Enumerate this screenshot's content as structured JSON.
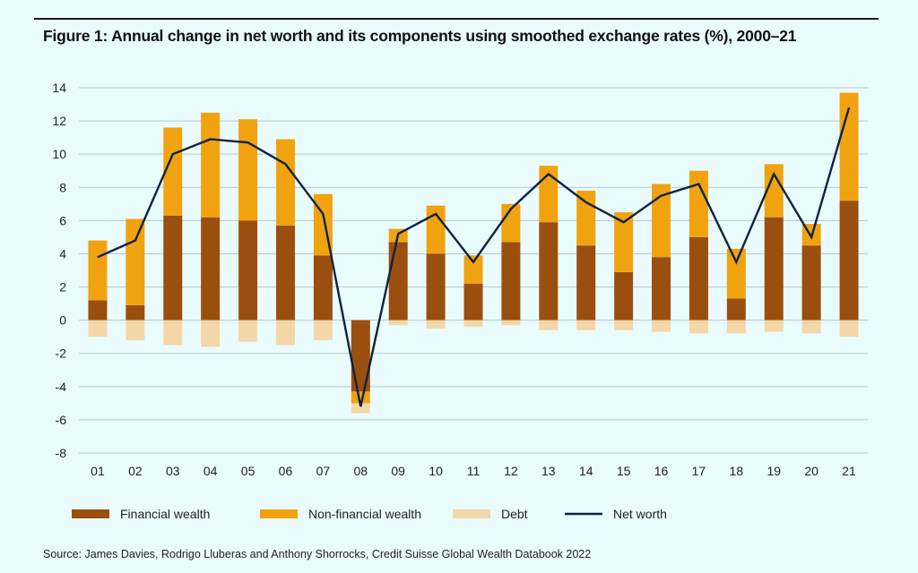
{
  "chart_data": {
    "type": "bar",
    "title": "Figure 1: Annual change in net worth and its components using smoothed exchange rates (%), 2000–21",
    "xlabel": "",
    "ylabel": "",
    "ylim": [
      -8,
      14
    ],
    "yticks": [
      14,
      12,
      10,
      8,
      6,
      4,
      2,
      0,
      -2,
      -4,
      -6,
      -8
    ],
    "grid": true,
    "legend_placement": "bottom",
    "stacked": true,
    "categories": [
      "01",
      "02",
      "03",
      "04",
      "05",
      "06",
      "07",
      "08",
      "09",
      "10",
      "11",
      "12",
      "13",
      "14",
      "15",
      "16",
      "17",
      "18",
      "19",
      "20",
      "21"
    ],
    "series": [
      {
        "name": "Financial wealth",
        "color": "#9b4f0e",
        "values": [
          1.2,
          0.9,
          6.3,
          6.2,
          6.0,
          5.7,
          3.9,
          -4.3,
          4.7,
          4.0,
          2.2,
          4.7,
          5.9,
          4.5,
          2.9,
          3.8,
          5.0,
          1.3,
          6.2,
          4.5,
          7.2
        ]
      },
      {
        "name": "Non-financial wealth",
        "color": "#f0a30f",
        "values": [
          3.6,
          5.2,
          5.3,
          6.3,
          6.1,
          5.2,
          3.7,
          -0.7,
          0.8,
          2.9,
          1.7,
          2.3,
          3.4,
          3.3,
          3.6,
          4.4,
          4.0,
          3.0,
          3.2,
          1.3,
          6.5
        ]
      },
      {
        "name": "Debt",
        "color": "#f3d7a8",
        "values": [
          -1.0,
          -1.2,
          -1.5,
          -1.6,
          -1.3,
          -1.5,
          -1.2,
          -0.6,
          -0.3,
          -0.5,
          -0.4,
          -0.3,
          -0.6,
          -0.6,
          -0.6,
          -0.7,
          -0.8,
          -0.8,
          -0.7,
          -0.8,
          -1.0
        ]
      },
      {
        "name": "Net worth",
        "type": "line",
        "color": "#0d2240",
        "values": [
          3.8,
          4.8,
          10.0,
          10.9,
          10.7,
          9.4,
          6.4,
          -5.2,
          5.2,
          6.4,
          3.5,
          6.7,
          8.8,
          7.1,
          5.9,
          7.5,
          8.2,
          3.5,
          8.8,
          5.0,
          12.8
        ]
      }
    ]
  },
  "source": "Source: James Davies, Rodrigo Lluberas and Anthony Shorrocks, Credit Suisse Global Wealth Databook 2022"
}
